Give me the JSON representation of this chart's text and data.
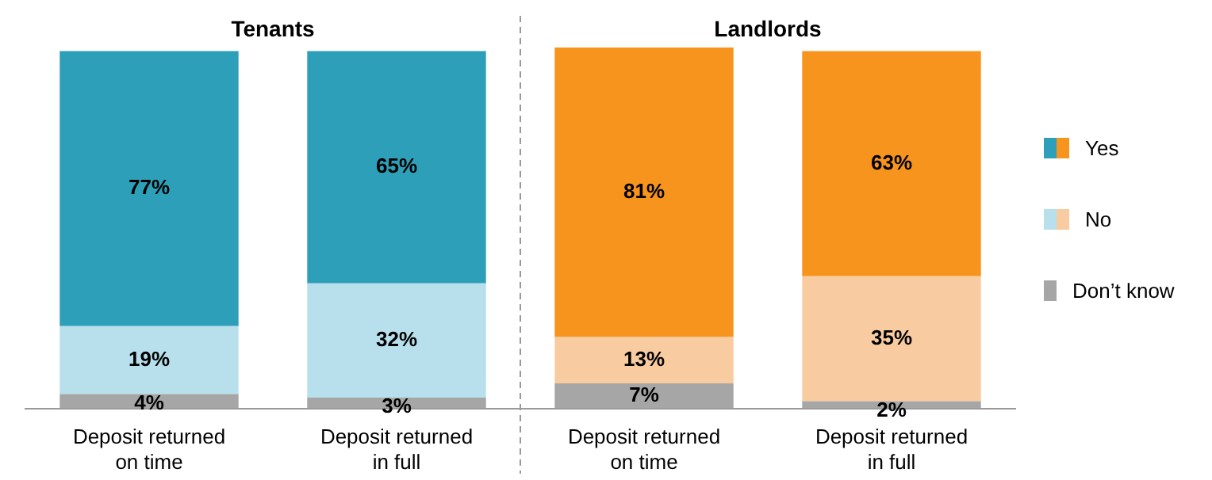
{
  "chart_data": {
    "type": "bar",
    "stacked": true,
    "categories": [
      "Deposit returned on time",
      "Deposit returned in full",
      "Deposit returned on time",
      "Deposit returned in full"
    ],
    "series": [
      {
        "name": "Don’t know",
        "colors": [
          "#a6a6a6",
          "#a6a6a6",
          "#a6a6a6",
          "#a6a6a6"
        ],
        "values": [
          4,
          3,
          7,
          2
        ],
        "value_labels": [
          "4%",
          "3%",
          "7%",
          "2%"
        ]
      },
      {
        "name": "No",
        "colors": [
          "#b8e0ec",
          "#b8e0ec",
          "#f9cba0",
          "#f9cba0"
        ],
        "values": [
          19,
          32,
          13,
          35
        ],
        "value_labels": [
          "19%",
          "32%",
          "13%",
          "35%"
        ]
      },
      {
        "name": "Yes",
        "colors": [
          "#2e9fb8",
          "#2e9fb8",
          "#f7941d",
          "#f7941d"
        ],
        "values": [
          77,
          65,
          81,
          63
        ],
        "value_labels": [
          "77%",
          "65%",
          "81%",
          "63%"
        ]
      }
    ],
    "annotations": [
      "Tenants",
      "Landlords"
    ],
    "legend": "right",
    "grid": false,
    "tick_labels": "x"
  }
}
